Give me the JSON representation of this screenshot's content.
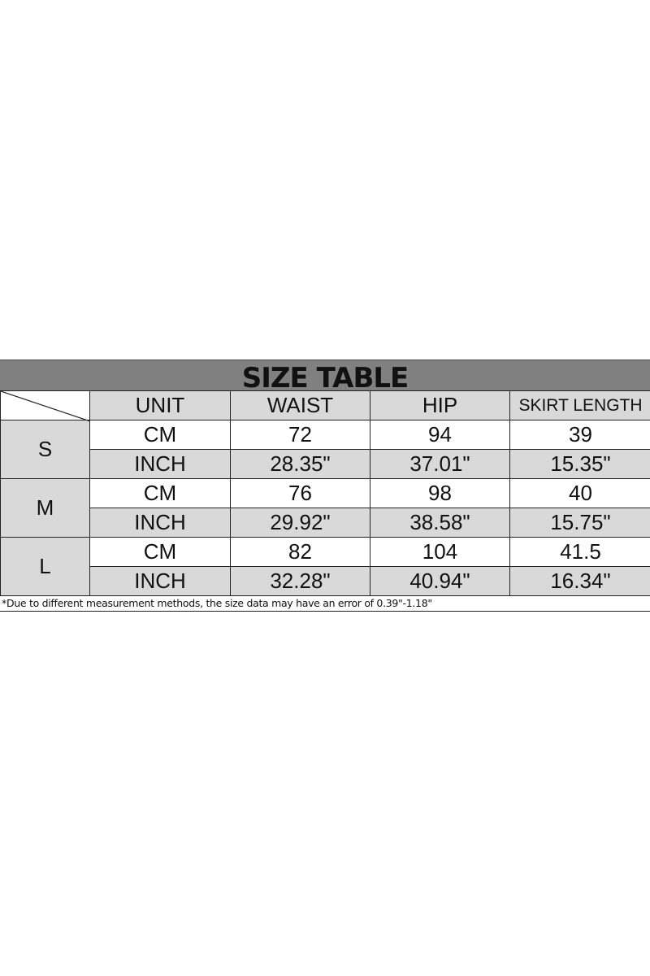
{
  "title": "SIZE TABLE",
  "headers": [
    "UNIT",
    "WAIST",
    "HIP",
    "SKIRT LENGTH"
  ],
  "rows": [
    {
      "size": "S",
      "cm": [
        "CM",
        "72",
        "94",
        "39"
      ],
      "inch": [
        "INCH",
        "28.35\"",
        "37.01\"",
        "15.35\""
      ]
    },
    {
      "size": "M",
      "cm": [
        "CM",
        "76",
        "98",
        "40"
      ],
      "inch": [
        "INCH",
        "29.92\"",
        "38.58\"",
        "15.75\""
      ]
    },
    {
      "size": "L",
      "cm": [
        "CM",
        "82",
        "104",
        "41.5"
      ],
      "inch": [
        "INCH",
        "32.28\"",
        "40.94\"",
        "16.34\""
      ]
    }
  ],
  "note": "*Due to different measurement methods, the size data may have an error of 0.39\"-1.18\"",
  "colors": {
    "title_bg": "#808080",
    "cell_gray": "#d9d9d9"
  }
}
